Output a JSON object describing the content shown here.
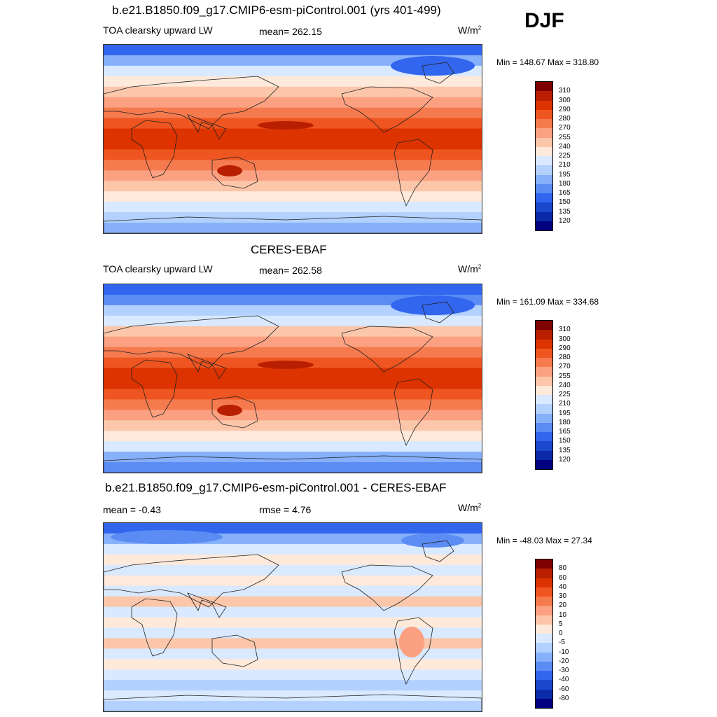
{
  "season": "DJF",
  "units_base": "W/m",
  "units_exp": "2",
  "panels": [
    {
      "title": "b.e21.B1850.f09_g17.CMIP6-esm-piControl.001 (yrs 401-499)",
      "variable": "TOA clearsky upward LW",
      "stat": "mean= 262.15",
      "minmax": "Min = 148.67 Max = 318.80",
      "kind": "model"
    },
    {
      "title": "CERES-EBAF",
      "variable": "TOA clearsky upward LW",
      "stat": "mean= 262.58",
      "minmax": "Min = 161.09 Max = 334.68",
      "kind": "obs"
    },
    {
      "title": "b.e21.B1850.f09_g17.CMIP6-esm-piControl.001 - CERES-EBAF",
      "mean_label": "mean =  -0.43",
      "rmse_label": "rmse =   4.76",
      "minmax": "Min = -48.03 Max =  27.34",
      "kind": "diff"
    }
  ],
  "colorbars": {
    "field": {
      "labels": [
        "310",
        "300",
        "290",
        "280",
        "270",
        "255",
        "240",
        "225",
        "210",
        "195",
        "180",
        "165",
        "150",
        "135",
        "120"
      ],
      "colors": [
        "#7f0000",
        "#b81f00",
        "#dd3300",
        "#ee5520",
        "#f57a4e",
        "#fba182",
        "#fcc6aa",
        "#fee9da",
        "#d9e9ff",
        "#b3d1fe",
        "#86b0fa",
        "#5b8cf4",
        "#3366ee",
        "#1a47cc",
        "#0b2aa8",
        "#000080"
      ]
    },
    "diff": {
      "labels": [
        "80",
        "60",
        "40",
        "30",
        "20",
        "10",
        "5",
        "0",
        "-5",
        "-10",
        "-20",
        "-30",
        "-40",
        "-60",
        "-80"
      ],
      "colors": [
        "#7f0000",
        "#b81f00",
        "#dd3300",
        "#ee5520",
        "#f57a4e",
        "#fba182",
        "#fcc6aa",
        "#fee9da",
        "#d9e9ff",
        "#b3d1fe",
        "#86b0fa",
        "#5b8cf4",
        "#3366ee",
        "#1a47cc",
        "#0b2aa8",
        "#000080"
      ]
    }
  }
}
